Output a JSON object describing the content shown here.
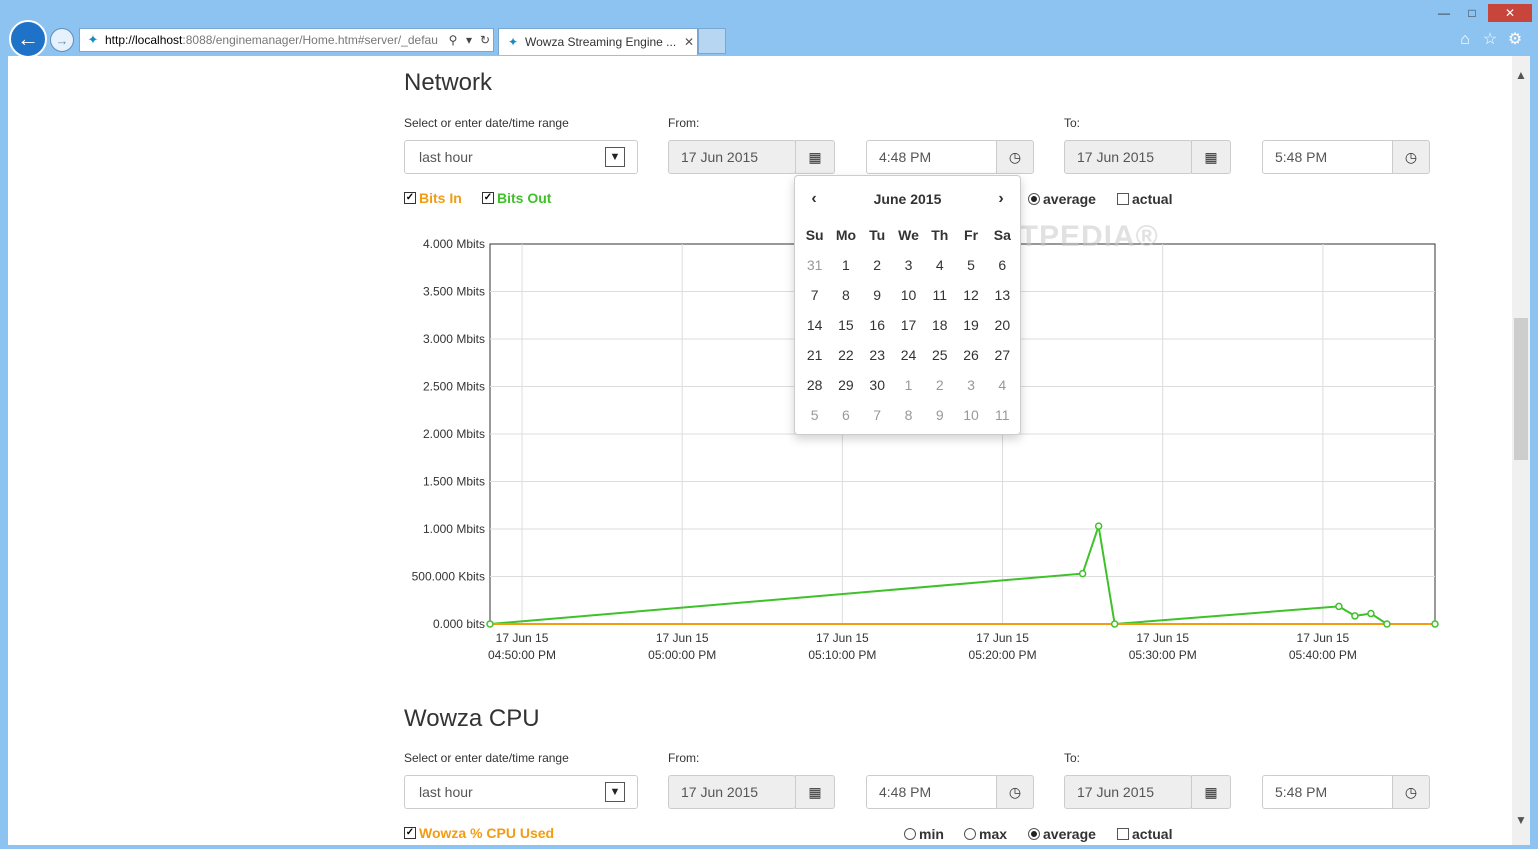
{
  "browser": {
    "url_host": "http://localhost",
    "url_rest": ":8088/enginemanager/Home.htm#server/_defau",
    "tab_title": "Wowza Streaming Engine ...",
    "controls": {
      "back": "back-icon",
      "forward": "forward-icon",
      "search": "search-icon",
      "refresh": "refresh-icon"
    },
    "window": {
      "min": "—",
      "max": "□",
      "close": "✕"
    }
  },
  "network": {
    "title": "Network",
    "range_label": "Select or enter date/time range",
    "range_value": "last hour",
    "from_label": "From:",
    "to_label": "To:",
    "from_date": "17 Jun 2015",
    "from_time": "4:48 PM",
    "to_date": "17 Jun 2015",
    "to_time": "5:48 PM",
    "bits_in": "Bits In",
    "bits_out": "Bits Out",
    "mode_average": "average",
    "mode_actual": "actual"
  },
  "calendar": {
    "title": "June 2015",
    "prev": "‹",
    "next": "›",
    "dow": [
      "Su",
      "Mo",
      "Tu",
      "We",
      "Th",
      "Fr",
      "Sa"
    ],
    "weeks": [
      [
        "31",
        "1",
        "2",
        "3",
        "4",
        "5",
        "6"
      ],
      [
        "7",
        "8",
        "9",
        "10",
        "11",
        "12",
        "13"
      ],
      [
        "14",
        "15",
        "16",
        "17",
        "18",
        "19",
        "20"
      ],
      [
        "21",
        "22",
        "23",
        "24",
        "25",
        "26",
        "27"
      ],
      [
        "28",
        "29",
        "30",
        "1",
        "2",
        "3",
        "4"
      ],
      [
        "5",
        "6",
        "7",
        "8",
        "9",
        "10",
        "11"
      ]
    ],
    "watermark": "SOFTPEDIA®"
  },
  "chart_data": {
    "type": "line",
    "ylabels": [
      "4.000 Mbits",
      "3.500 Mbits",
      "3.000 Mbits",
      "2.500 Mbits",
      "2.000 Mbits",
      "1.500 Mbits",
      "1.000 Mbits",
      "500.000 Kbits",
      "0.000 bits"
    ],
    "ylim": [
      0,
      4000000
    ],
    "xlabels": [
      [
        "17 Jun 15",
        "04:50:00 PM"
      ],
      [
        "17 Jun 15",
        "05:00:00 PM"
      ],
      [
        "17 Jun 15",
        "05:10:00 PM"
      ],
      [
        "17 Jun 15",
        "05:20:00 PM"
      ],
      [
        "17 Jun 15",
        "05:30:00 PM"
      ],
      [
        "17 Jun 15",
        "05:40:00 PM"
      ]
    ],
    "x_range_minutes": [
      -2,
      57
    ],
    "series": [
      {
        "name": "Bits Out",
        "color": "#3fc12a",
        "points": [
          [
            -2,
            0
          ],
          [
            35,
            530000
          ],
          [
            36,
            1030000
          ],
          [
            37,
            0
          ],
          [
            51,
            185000
          ],
          [
            52,
            85000
          ],
          [
            53,
            110000
          ],
          [
            54,
            0
          ],
          [
            57,
            0
          ]
        ]
      },
      {
        "name": "Bits In",
        "color": "#f39c12",
        "points": [
          [
            -2,
            0
          ],
          [
            57,
            0
          ]
        ]
      }
    ],
    "grid": true
  },
  "cpu": {
    "title": "Wowza CPU",
    "range_label": "Select or enter date/time range",
    "range_value": "last hour",
    "from_label": "From:",
    "to_label": "To:",
    "from_date": "17 Jun 2015",
    "from_time": "4:48 PM",
    "to_date": "17 Jun 2015",
    "to_time": "5:48 PM",
    "cpu_used": "Wowza % CPU Used",
    "mode_min": "min",
    "mode_max": "max",
    "mode_average": "average",
    "mode_actual": "actual"
  },
  "colors": {
    "bits_in": "#f39c12",
    "bits_out": "#3fc12a"
  }
}
